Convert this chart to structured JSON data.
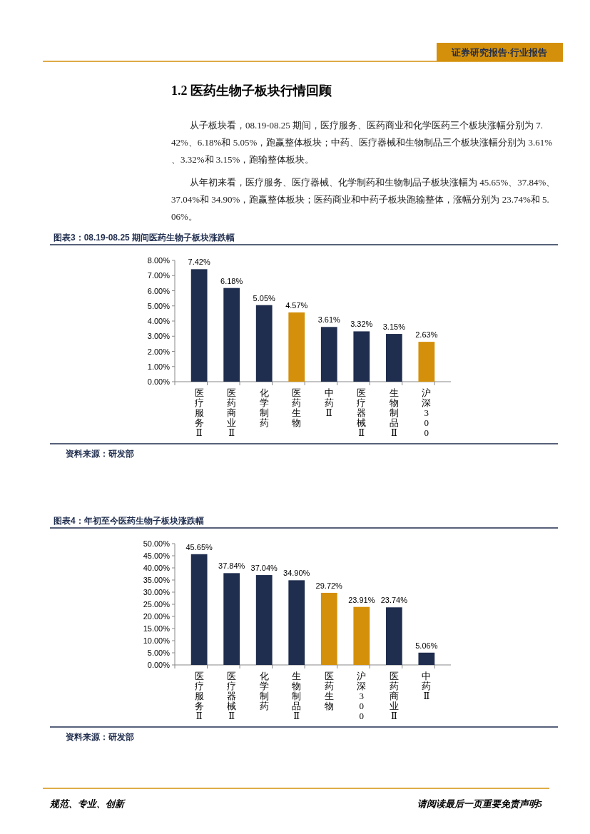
{
  "chart_data": [
    {
      "type": "other",
      "title": "1.2 医药生物子板块行情回顾",
      "annotations": [
        "证券研究报告·行业报告",
        "从子板块看，08.19-08.25 期间，医疗服务、医药商业和化学医药三个板块涨幅分别为 7.42%、6.18%和 5.05%，跑赢整体板块；中药、医疗器械和生物制品三个板块涨幅分别为 3.61%、3.32%和 3.15%，跑输整体板块。",
        "从年初来看，医疗服务、医疗器械、化学制药和生物制品子板块涨幅为 45.65%、37.84%、37.04%和 34.90%，跑赢整体板块；医药商业和中药子板块跑输整体，涨幅分别为 23.74%和 5.06%。",
        "规范、专业、创新",
        "请阅读最后一页重要免责声明5"
      ]
    },
    {
      "type": "bar",
      "title": "图表3：08.19-08.25 期间医药生物子板块涨跌幅",
      "annotations": [
        "资料来源：研发部"
      ],
      "categories": [
        "医疗服务Ⅱ",
        "医药商业Ⅱ",
        "化学制药",
        "医药生物",
        "中药Ⅱ",
        "医疗器械Ⅱ",
        "生物制品Ⅱ",
        "沪深300"
      ],
      "values": [
        7.42,
        6.18,
        5.05,
        4.57,
        3.61,
        3.32,
        3.15,
        2.63
      ],
      "value_labels": [
        "7.42%",
        "6.18%",
        "5.05%",
        "4.57%",
        "3.61%",
        "3.32%",
        "3.15%",
        "2.63%"
      ],
      "colors": [
        "#1f2d4e",
        "#1f2d4e",
        "#1f2d4e",
        "#d4900a",
        "#1f2d4e",
        "#1f2d4e",
        "#1f2d4e",
        "#d4900a"
      ],
      "ylim": [
        0,
        8
      ],
      "yticks": [
        {
          "value": 0,
          "label": "0.00%"
        },
        {
          "value": 1,
          "label": "1.00%"
        },
        {
          "value": 2,
          "label": "2.00%"
        },
        {
          "value": 3,
          "label": "3.00%"
        },
        {
          "value": 4,
          "label": "4.00%"
        },
        {
          "value": 5,
          "label": "5.00%"
        },
        {
          "value": 6,
          "label": "6.00%"
        },
        {
          "value": 7,
          "label": "7.00%"
        },
        {
          "value": 8,
          "label": "8.00%"
        }
      ]
    },
    {
      "type": "bar",
      "title": "图表4：年初至今医药生物子板块涨跌幅",
      "annotations": [
        "资料来源：研发部"
      ],
      "categories": [
        "医疗服务Ⅱ",
        "医疗器械Ⅱ",
        "化学制药",
        "生物制品Ⅱ",
        "医药生物",
        "沪深300",
        "医药商业Ⅱ",
        "中药Ⅱ"
      ],
      "values": [
        45.65,
        37.84,
        37.04,
        34.9,
        29.72,
        23.91,
        23.74,
        5.06
      ],
      "value_labels": [
        "45.65%",
        "37.84%",
        "37.04%",
        "34.90%",
        "29.72%",
        "23.91%",
        "23.74%",
        "5.06%"
      ],
      "colors": [
        "#1f2d4e",
        "#1f2d4e",
        "#1f2d4e",
        "#1f2d4e",
        "#d4900a",
        "#d4900a",
        "#1f2d4e",
        "#1f2d4e"
      ],
      "ylim": [
        0,
        50
      ],
      "yticks": [
        {
          "value": 0,
          "label": "0.00%"
        },
        {
          "value": 5,
          "label": "5.00%"
        },
        {
          "value": 10,
          "label": "10.00%"
        },
        {
          "value": 15,
          "label": "15.00%"
        },
        {
          "value": 20,
          "label": "20.00%"
        },
        {
          "value": 25,
          "label": "25.00%"
        },
        {
          "value": 30,
          "label": "30.00%"
        },
        {
          "value": 35,
          "label": "35.00%"
        },
        {
          "value": 40,
          "label": "40.00%"
        },
        {
          "value": 45,
          "label": "45.00%"
        },
        {
          "value": 50,
          "label": "50.00%"
        }
      ]
    }
  ]
}
